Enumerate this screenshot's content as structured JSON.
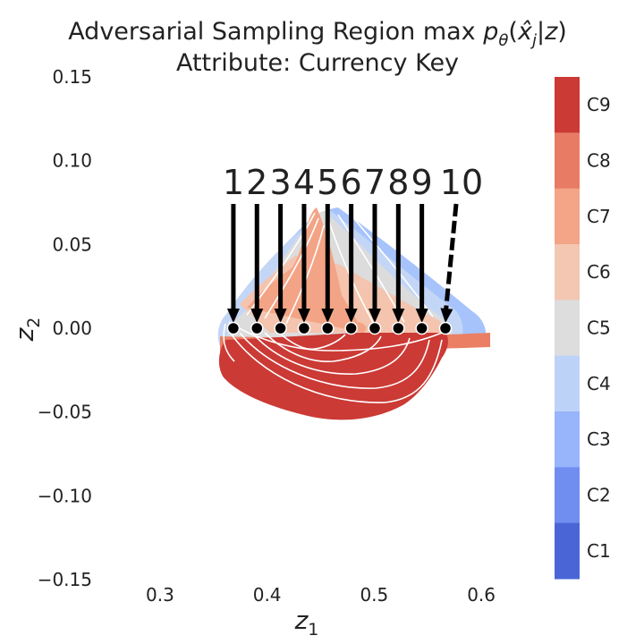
{
  "chart_data": {
    "type": "contourf",
    "title_main": "Adversarial Sampling Region max ",
    "title_math": {
      "p": "p",
      "sub_theta": "θ",
      "open": "(",
      "xhat": "x̂",
      "sub_j": "j",
      "bar": "|",
      "z": "z",
      "close": ")"
    },
    "subtitle": "Attribute: Currency Key",
    "xlabel": {
      "base": "z",
      "sub": "1"
    },
    "ylabel": {
      "base": "z",
      "sub": "2"
    },
    "xlim": [
      0.265,
      0.635
    ],
    "ylim": [
      -0.15,
      0.15
    ],
    "xticks": [
      0.3,
      0.4,
      0.5,
      0.6
    ],
    "xtick_labels": [
      "0.3",
      "0.4",
      "0.5",
      "0.6"
    ],
    "yticks": [
      0.15,
      0.1,
      0.05,
      0.0,
      -0.05,
      -0.1,
      -0.15
    ],
    "ytick_labels": [
      "0.15",
      "0.10",
      "0.05",
      "0.00",
      "−0.05",
      "−0.10",
      "−0.15"
    ],
    "colorbar": {
      "labels": [
        "C1",
        "C2",
        "C3",
        "C4",
        "C5",
        "C6",
        "C7",
        "C8",
        "C9"
      ],
      "colors": [
        "#4a66d6",
        "#6f8ef0",
        "#98b4fb",
        "#bdd2f7",
        "#dddddd",
        "#f3c7b2",
        "#f4a487",
        "#e87b63",
        "#cb3a35"
      ]
    },
    "region_colors": {
      "outer_blue": "#a7c3fb",
      "light_blue": "#c4d6f6",
      "gray": "#dcdcdc",
      "peach": "#f4c4ae",
      "salmon": "#f3a486",
      "orange": "#ea7f64",
      "red": "#cb3a35"
    },
    "sample_points": {
      "labels": [
        "1",
        "2",
        "3",
        "4",
        "5",
        "6",
        "7",
        "8",
        "9",
        "10"
      ],
      "x": [
        0.3685,
        0.3905,
        0.4125,
        0.4345,
        0.4565,
        0.4785,
        0.5005,
        0.5225,
        0.5445,
        0.5665
      ],
      "y": [
        0.0,
        0.0,
        0.0,
        0.0,
        0.0,
        0.0,
        0.0,
        0.0,
        0.0,
        0.0
      ]
    },
    "arrow_color": "#000000",
    "contour_line_color": "#ffffff"
  }
}
